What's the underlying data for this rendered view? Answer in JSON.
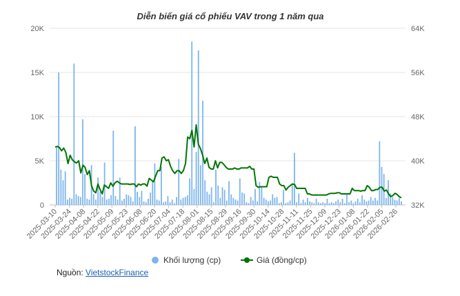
{
  "chart_data": {
    "type": "bar+line",
    "title": "Diễn biến giá cổ phiếu VAV trong 1 năm qua",
    "x_tick_labels": [
      "2025-03-10",
      "2025-03-24",
      "2025-04-08",
      "2025-04-22",
      "2025-05-09",
      "2025-05-23",
      "2025-06-08",
      "2025-06-20",
      "2025-07-04",
      "2025-07-18",
      "2025-08-01",
      "2025-08-15",
      "2025-08-29",
      "2025-09-16",
      "2025-09-30",
      "2025-10-14",
      "2025-10-28",
      "2025-11-11",
      "2025-11-25",
      "2025-12-09",
      "2025-12-23",
      "2026-01-08",
      "2026-01-22",
      "2026-02-05",
      "2026-02-26"
    ],
    "y_left": {
      "ticks": [
        "0",
        "5K",
        "10K",
        "15K",
        "20K"
      ],
      "ylim": [
        0,
        20000
      ]
    },
    "y_right": {
      "ticks": [
        "32K",
        "40K",
        "48K",
        "56K",
        "64K"
      ],
      "ylim": [
        32000,
        64000
      ]
    },
    "grid": true,
    "legend_position": "bottom",
    "series": [
      {
        "name": "Khối lượng (cp)",
        "kind": "bar",
        "axis": "left",
        "color": "#7cb5ec",
        "values": [
          6500,
          15000,
          4000,
          2800,
          3800,
          600,
          800,
          700,
          16000,
          1200,
          1000,
          900,
          9700,
          3500,
          700,
          600,
          4500,
          1200,
          600,
          3100,
          1500,
          900,
          4800,
          600,
          700,
          1100,
          8400,
          1000,
          600,
          3100,
          500,
          700,
          1200,
          1100,
          900,
          400,
          8900,
          1500,
          900,
          1600,
          400,
          300,
          700,
          1400,
          2700,
          4700,
          600,
          500,
          4300,
          300,
          400,
          1000,
          300,
          600,
          200,
          900,
          5200,
          600,
          800,
          900,
          1100,
          3000,
          18500,
          1800,
          6000,
          17500,
          4500,
          11800,
          2800,
          1500,
          1200,
          2000,
          300,
          4000,
          2200,
          800,
          2000,
          1700,
          500,
          2700,
          1200,
          800,
          600,
          500,
          3000,
          1400,
          1300,
          300,
          200,
          900,
          500,
          1800,
          400,
          2600,
          2100,
          800,
          600,
          400,
          500,
          1200,
          800,
          900,
          200,
          300,
          1700,
          200,
          300,
          500,
          2300,
          5900,
          300,
          1300,
          200,
          600,
          300,
          800,
          400,
          300,
          200,
          700,
          300,
          200,
          300,
          200,
          700,
          200,
          300,
          200,
          400,
          600,
          300,
          700,
          200,
          1200,
          300,
          500,
          200,
          400,
          700,
          300,
          1100,
          600,
          400,
          500,
          900,
          500,
          800,
          500,
          7200,
          4300,
          3500,
          800,
          2800,
          1300,
          900,
          600,
          500,
          800,
          400
        ]
      },
      {
        "name": "Giá (đồng/cp)",
        "kind": "line",
        "axis": "right",
        "color": "#007400",
        "values": [
          42500,
          42600,
          42400,
          41800,
          42300,
          41500,
          39500,
          41000,
          40200,
          39800,
          39600,
          40000,
          37800,
          39200,
          38800,
          37500,
          38200,
          35500,
          34500,
          34200,
          35800,
          34800,
          34000,
          35600,
          35300,
          35000,
          36000,
          35400,
          36000,
          36300,
          36000,
          35800,
          35800,
          35800,
          35800,
          35700,
          35800,
          35800,
          35300,
          35800,
          35600,
          35800,
          35800,
          35400,
          36800,
          36500,
          36200,
          37200,
          38200,
          38200,
          40500,
          40700,
          40000,
          40200,
          39000,
          38200,
          37700,
          38200,
          38200,
          37700,
          38200,
          39500,
          44300,
          44000,
          45500,
          42500,
          46500,
          43000,
          42200,
          41000,
          39500,
          40500,
          38800,
          38500,
          38500,
          40000,
          38700,
          39700,
          39700,
          39300,
          38800,
          38500,
          38500,
          38500,
          38700,
          38500,
          38500,
          38700,
          38700,
          38700,
          38700,
          39000,
          38500,
          38500,
          35500,
          35200,
          35300,
          35300,
          35300,
          35300,
          37000,
          37200,
          37000,
          37000,
          37000,
          35800,
          35500,
          35500,
          34700,
          35200,
          35500,
          35800,
          35700,
          35000,
          35000,
          35000,
          35000,
          35000,
          34000,
          34000,
          33800,
          33800,
          33800,
          33800,
          33800,
          33800,
          33800,
          33800,
          34000,
          34100,
          34100,
          34100,
          34200,
          34200,
          34000,
          34000,
          34000,
          34000,
          34000,
          35000,
          34600,
          34600,
          34600,
          34500,
          34600,
          34600,
          35500,
          35200,
          34600,
          34600,
          34800,
          34800,
          35200,
          35200,
          34500,
          34700,
          34000,
          33500,
          33700,
          34100,
          33900,
          33500,
          33300
        ]
      }
    ]
  },
  "footer": {
    "label": "Nguồn: ",
    "link_text": "VietstockFinance"
  }
}
